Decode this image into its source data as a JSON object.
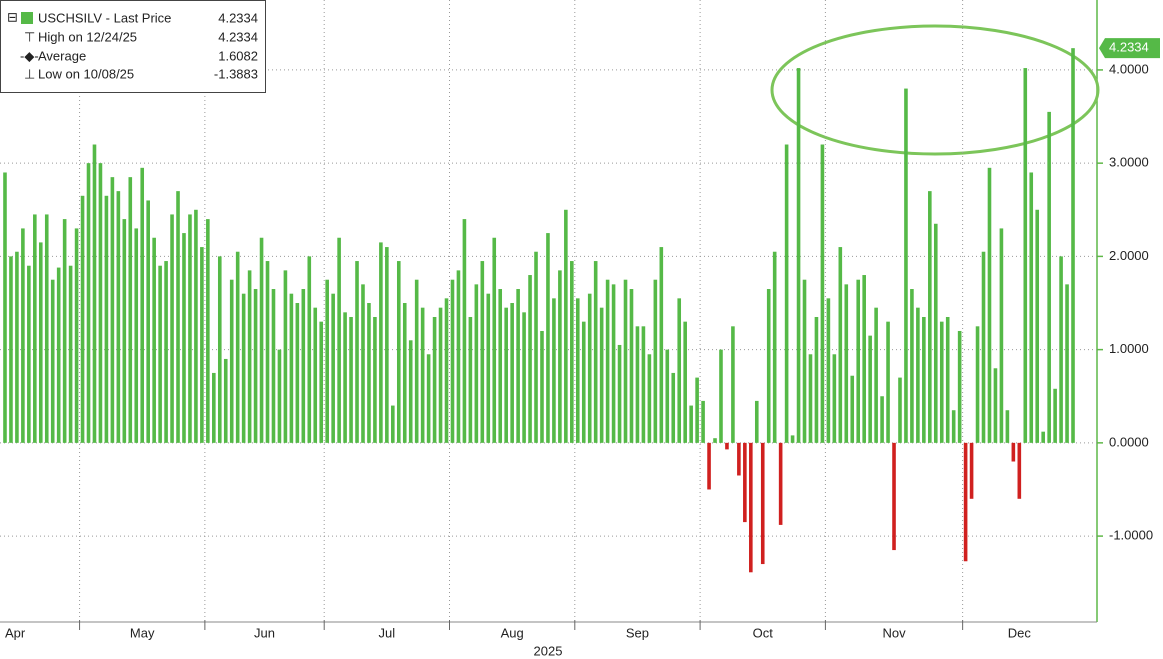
{
  "chart_data": {
    "type": "bar",
    "legend": {
      "items": [
        {
          "label": "USCHSILV - Last Price",
          "value": 4.2334
        },
        {
          "label": "High on 12/24/25",
          "value": 4.2334
        },
        {
          "label": "Average",
          "value": 1.6082
        },
        {
          "label": "Low on 10/08/25",
          "value": -1.3883
        }
      ]
    },
    "x_label": "2025",
    "categories": [
      "Apr",
      null,
      null,
      null,
      null,
      null,
      null,
      null,
      null,
      null,
      null,
      null,
      null,
      "May",
      null,
      null,
      null,
      null,
      null,
      null,
      null,
      null,
      null,
      null,
      null,
      null,
      null,
      null,
      null,
      null,
      null,
      null,
      null,
      null,
      "Jun",
      null,
      null,
      null,
      null,
      null,
      null,
      null,
      null,
      null,
      null,
      null,
      null,
      null,
      null,
      null,
      null,
      null,
      null,
      null,
      "Jul",
      null,
      null,
      null,
      null,
      null,
      null,
      null,
      null,
      null,
      null,
      null,
      null,
      null,
      null,
      null,
      null,
      null,
      null,
      null,
      null,
      "Aug",
      null,
      null,
      null,
      null,
      null,
      null,
      null,
      null,
      null,
      null,
      null,
      null,
      null,
      null,
      null,
      null,
      null,
      null,
      null,
      null,
      "Sep",
      null,
      null,
      null,
      null,
      null,
      null,
      null,
      null,
      null,
      null,
      null,
      null,
      null,
      null,
      null,
      null,
      null,
      null,
      null,
      null,
      "Oct",
      null,
      null,
      null,
      null,
      null,
      null,
      null,
      null,
      null,
      null,
      null,
      null,
      null,
      null,
      null,
      null,
      null,
      null,
      null,
      null,
      "Nov",
      null,
      null,
      null,
      null,
      null,
      null,
      null,
      null,
      null,
      null,
      null,
      null,
      null,
      null,
      null,
      null,
      null,
      null,
      null,
      null,
      null,
      null,
      "Dec",
      null,
      null,
      null,
      null,
      null,
      null,
      null,
      null,
      null,
      null,
      null,
      null,
      null,
      null,
      null,
      null,
      null,
      null
    ],
    "values": [
      2.9,
      2.0,
      2.05,
      2.3,
      1.9,
      2.45,
      2.15,
      2.45,
      1.75,
      1.88,
      2.4,
      1.9,
      2.3,
      2.65,
      3.0,
      3.2,
      3.0,
      2.65,
      2.85,
      2.7,
      2.4,
      2.85,
      2.3,
      2.95,
      2.6,
      2.2,
      1.9,
      1.95,
      2.45,
      2.7,
      2.25,
      2.45,
      2.5,
      2.1,
      2.4,
      0.75,
      2.0,
      0.9,
      1.75,
      2.05,
      1.6,
      1.85,
      1.65,
      2.2,
      1.95,
      1.65,
      1.0,
      1.85,
      1.6,
      1.5,
      1.65,
      2.0,
      1.45,
      1.3,
      1.75,
      1.6,
      2.2,
      1.4,
      1.35,
      1.95,
      1.7,
      1.5,
      1.35,
      2.15,
      2.1,
      0.4,
      1.95,
      1.5,
      1.1,
      1.75,
      1.45,
      0.95,
      1.35,
      1.45,
      1.55,
      1.75,
      1.85,
      2.4,
      1.35,
      1.7,
      1.95,
      1.6,
      2.2,
      1.65,
      1.45,
      1.5,
      1.65,
      1.4,
      1.8,
      2.05,
      1.2,
      2.25,
      1.55,
      1.85,
      2.5,
      1.95,
      1.55,
      1.3,
      1.6,
      1.95,
      1.45,
      1.75,
      1.7,
      1.05,
      1.75,
      1.65,
      1.25,
      1.25,
      0.95,
      1.75,
      2.1,
      1.0,
      0.75,
      1.55,
      1.3,
      0.4,
      0.7,
      0.45,
      -0.5,
      0.05,
      1.0,
      -0.07,
      1.25,
      -0.35,
      -0.85,
      -1.3883,
      0.45,
      -1.3,
      1.65,
      2.05,
      -0.88,
      3.2,
      0.08,
      4.02,
      1.75,
      0.95,
      1.35,
      3.2,
      1.55,
      0.95,
      2.1,
      1.7,
      0.72,
      1.75,
      1.8,
      1.15,
      1.45,
      0.5,
      1.3,
      -1.15,
      0.7,
      3.8,
      1.65,
      1.45,
      1.35,
      2.7,
      2.35,
      1.3,
      1.35,
      0.35,
      1.2,
      -1.27,
      -0.6,
      1.25,
      2.05,
      2.95,
      0.8,
      2.3,
      0.35,
      -0.2,
      -0.6,
      4.02,
      2.9,
      2.5,
      0.12,
      3.55,
      0.58,
      2.0,
      1.7,
      4.2334
    ],
    "color": "#55b947",
    "negative_color": "#d0201f",
    "ylim": [
      -1.9,
      4.75
    ],
    "yticks": [
      {
        "value": -1,
        "label": "-1.0000"
      },
      {
        "value": 0,
        "label": "0.0000"
      },
      {
        "value": 1,
        "label": "1.0000"
      },
      {
        "value": 2,
        "label": "2.0000"
      },
      {
        "value": 3,
        "label": "3.0000"
      },
      {
        "value": 4,
        "label": "4.0000"
      }
    ],
    "grid": true
  }
}
